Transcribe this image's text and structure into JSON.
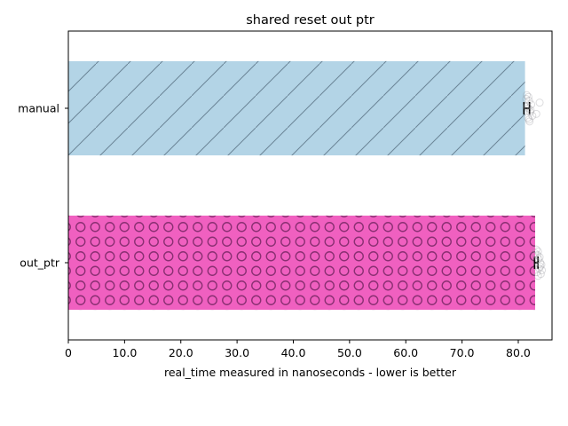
{
  "chart_data": {
    "type": "bar",
    "orientation": "horizontal",
    "title": "shared reset out ptr",
    "xlabel": "real_time measured in nanoseconds - lower is better",
    "ylabel": "",
    "xlim": [
      0,
      86
    ],
    "xticks": [
      0,
      10,
      20,
      30,
      40,
      50,
      60,
      70,
      80
    ],
    "xtick_labels": [
      "0",
      "10.0",
      "20.0",
      "30.0",
      "40.0",
      "50.0",
      "60.0",
      "70.0",
      "80.0"
    ],
    "categories": [
      "manual",
      "out_ptr"
    ],
    "values": [
      81.2,
      83.0
    ],
    "error_low": [
      81.0,
      82.9
    ],
    "error_high": [
      82.0,
      83.5
    ],
    "samples": [
      [
        81.5,
        81.8,
        82.0,
        81.6,
        81.9,
        82.3,
        81.7,
        83.8,
        82.5,
        81.9,
        83.2,
        81.4,
        82.1,
        81.8,
        82.2
      ],
      [
        83.2,
        83.9,
        83.5,
        83.1,
        84.0,
        83.6,
        83.3,
        83.8,
        84.2,
        83.4,
        83.7,
        83.0,
        83.9,
        83.5,
        84.1
      ]
    ],
    "colors": [
      "#b3d4e6",
      "#f060c0"
    ],
    "hatch": [
      "diagonal",
      "circles"
    ],
    "grid": false,
    "legend": "none"
  }
}
